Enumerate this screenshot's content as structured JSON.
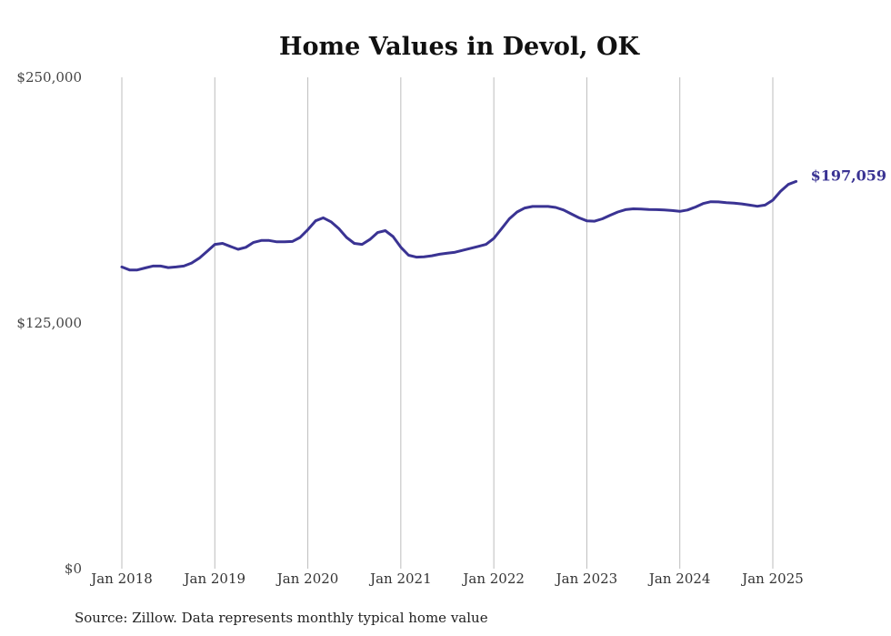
{
  "chart_data": {
    "type": "line",
    "title": "Home Values in Devol, OK",
    "ylabel": "",
    "xlabel": "",
    "ylim": [
      0,
      250000
    ],
    "y_ticks": [
      {
        "value": 0,
        "label": "$0"
      },
      {
        "value": 125000,
        "label": "$125,000"
      },
      {
        "value": 250000,
        "label": "$250,000"
      }
    ],
    "x_ticks": [
      "Jan 2018",
      "Jan 2019",
      "Jan 2020",
      "Jan 2021",
      "Jan 2022",
      "Jan 2023",
      "Jan 2024",
      "Jan 2025"
    ],
    "grid": "vertical",
    "series": [
      {
        "color": "#3a3393",
        "end_label": "$197,059",
        "points": [
          [
            "2018-01",
            153500
          ],
          [
            "2018-02",
            152000
          ],
          [
            "2018-03",
            152000
          ],
          [
            "2018-04",
            153000
          ],
          [
            "2018-05",
            154000
          ],
          [
            "2018-06",
            154000
          ],
          [
            "2018-07",
            153200
          ],
          [
            "2018-08",
            153500
          ],
          [
            "2018-09",
            154000
          ],
          [
            "2018-10",
            155500
          ],
          [
            "2018-11",
            158000
          ],
          [
            "2018-12",
            161500
          ],
          [
            "2019-01",
            165000
          ],
          [
            "2019-02",
            165500
          ],
          [
            "2019-03",
            164000
          ],
          [
            "2019-04",
            162500
          ],
          [
            "2019-05",
            163500
          ],
          [
            "2019-06",
            166000
          ],
          [
            "2019-07",
            167000
          ],
          [
            "2019-08",
            167000
          ],
          [
            "2019-09",
            166300
          ],
          [
            "2019-10",
            166300
          ],
          [
            "2019-11",
            166500
          ],
          [
            "2019-12",
            168500
          ],
          [
            "2020-01",
            172500
          ],
          [
            "2020-02",
            177000
          ],
          [
            "2020-03",
            178500
          ],
          [
            "2020-04",
            176500
          ],
          [
            "2020-05",
            173000
          ],
          [
            "2020-06",
            168500
          ],
          [
            "2020-07",
            165500
          ],
          [
            "2020-08",
            165000
          ],
          [
            "2020-09",
            167500
          ],
          [
            "2020-10",
            171000
          ],
          [
            "2020-11",
            172000
          ],
          [
            "2020-12",
            169000
          ],
          [
            "2021-01",
            163500
          ],
          [
            "2021-02",
            159500
          ],
          [
            "2021-03",
            158500
          ],
          [
            "2021-04",
            158700
          ],
          [
            "2021-05",
            159200
          ],
          [
            "2021-06",
            160000
          ],
          [
            "2021-07",
            160500
          ],
          [
            "2021-08",
            161000
          ],
          [
            "2021-09",
            162000
          ],
          [
            "2021-10",
            163000
          ],
          [
            "2021-11",
            164000
          ],
          [
            "2021-12",
            165000
          ],
          [
            "2022-01",
            168000
          ],
          [
            "2022-02",
            173000
          ],
          [
            "2022-03",
            178000
          ],
          [
            "2022-04",
            181500
          ],
          [
            "2022-05",
            183500
          ],
          [
            "2022-06",
            184300
          ],
          [
            "2022-07",
            184300
          ],
          [
            "2022-08",
            184300
          ],
          [
            "2022-09",
            183800
          ],
          [
            "2022-10",
            182500
          ],
          [
            "2022-11",
            180500
          ],
          [
            "2022-12",
            178500
          ],
          [
            "2023-01",
            177000
          ],
          [
            "2023-02",
            176800
          ],
          [
            "2023-03",
            178000
          ],
          [
            "2023-04",
            179800
          ],
          [
            "2023-05",
            181500
          ],
          [
            "2023-06",
            182700
          ],
          [
            "2023-07",
            183100
          ],
          [
            "2023-08",
            183000
          ],
          [
            "2023-09",
            182800
          ],
          [
            "2023-10",
            182700
          ],
          [
            "2023-11",
            182500
          ],
          [
            "2023-12",
            182200
          ],
          [
            "2024-01",
            181800
          ],
          [
            "2024-02",
            182500
          ],
          [
            "2024-03",
            184000
          ],
          [
            "2024-04",
            185800
          ],
          [
            "2024-05",
            186700
          ],
          [
            "2024-06",
            186600
          ],
          [
            "2024-07",
            186200
          ],
          [
            "2024-08",
            186000
          ],
          [
            "2024-09",
            185600
          ],
          [
            "2024-10",
            185000
          ],
          [
            "2024-11",
            184400
          ],
          [
            "2024-12",
            185000
          ],
          [
            "2025-01",
            187500
          ],
          [
            "2025-02",
            192000
          ],
          [
            "2025-03",
            195500
          ],
          [
            "2025-04",
            197059
          ]
        ]
      }
    ],
    "source": "Source: Zillow. Data represents monthly typical home value"
  }
}
